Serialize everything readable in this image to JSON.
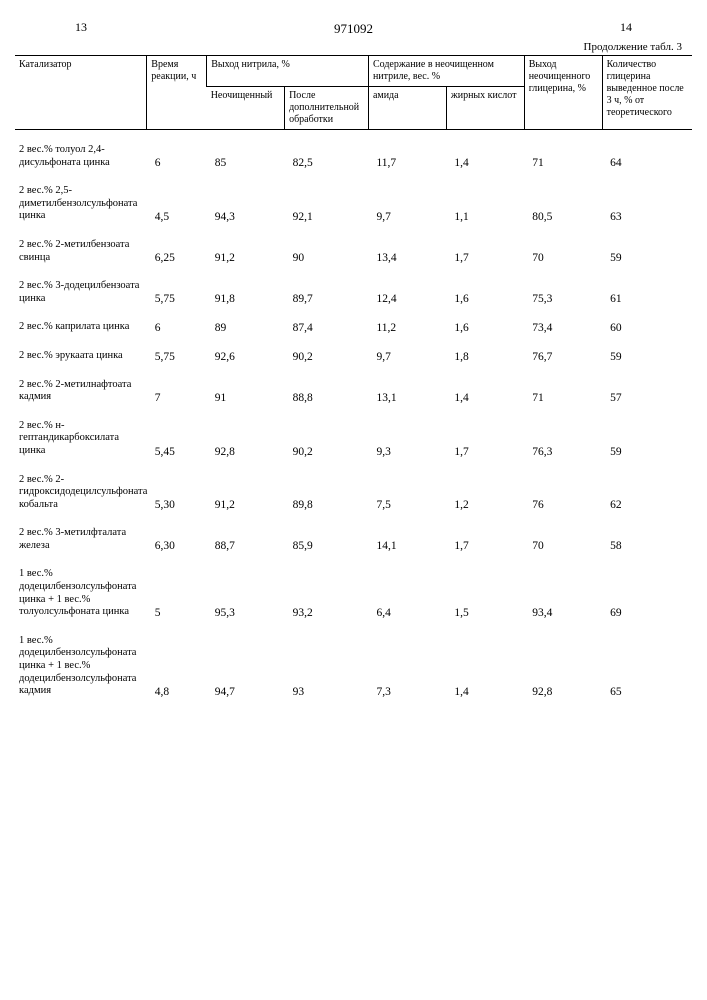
{
  "page_left": "13",
  "doc_number": "971092",
  "page_right": "14",
  "continuation": "Продолжение табл. 3",
  "headers": {
    "catalyst": "Катализатор",
    "time": "Время реакции, ч",
    "nitrile_yield": "Выход нитрила, %",
    "crude": "Неочищенный",
    "after": "После дополнительной обработки",
    "content": "Содержание в неочищенном нитриле, вес. %",
    "amide": "амида",
    "fatty": "жирных кислот",
    "glycerin_yield": "Выход неочищенного глицерина, %",
    "glycerin_amount": "Количество глицерина выведенное после 3 ч, % от теоретического"
  },
  "rows": [
    {
      "cat": "2 вес.% толуол 2,4-дисульфоната цинка",
      "time": "6",
      "crude": "85",
      "after": "82,5",
      "amide": "11,7",
      "fatty": "1,4",
      "gy": "71",
      "ga": "64"
    },
    {
      "cat": "2 вес.% 2,5-диметилбензолсульфоната цинка",
      "time": "4,5",
      "crude": "94,3",
      "after": "92,1",
      "amide": "9,7",
      "fatty": "1,1",
      "gy": "80,5",
      "ga": "63"
    },
    {
      "cat": "2 вес.% 2-метилбензоата свинца",
      "time": "6,25",
      "crude": "91,2",
      "after": "90",
      "amide": "13,4",
      "fatty": "1,7",
      "gy": "70",
      "ga": "59"
    },
    {
      "cat": "2 вес.% 3-додецилбензоата цинка",
      "time": "5,75",
      "crude": "91,8",
      "after": "89,7",
      "amide": "12,4",
      "fatty": "1,6",
      "gy": "75,3",
      "ga": "61"
    },
    {
      "cat": "2 вес.% каприлата цинка",
      "time": "6",
      "crude": "89",
      "after": "87,4",
      "amide": "11,2",
      "fatty": "1,6",
      "gy": "73,4",
      "ga": "60"
    },
    {
      "cat": "2 вес.% эрукаата цинка",
      "time": "5,75",
      "crude": "92,6",
      "after": "90,2",
      "amide": "9,7",
      "fatty": "1,8",
      "gy": "76,7",
      "ga": "59"
    },
    {
      "cat": "2 вес.% 2-метилнафтоата кадмия",
      "time": "7",
      "crude": "91",
      "after": "88,8",
      "amide": "13,1",
      "fatty": "1,4",
      "gy": "71",
      "ga": "57"
    },
    {
      "cat": "2 вес.% н-гептандикарбоксилата цинка",
      "time": "5,45",
      "crude": "92,8",
      "after": "90,2",
      "amide": "9,3",
      "fatty": "1,7",
      "gy": "76,3",
      "ga": "59"
    },
    {
      "cat": "2 вес.% 2-гидроксидодецилсульфоната кобальта",
      "time": "5,30",
      "crude": "91,2",
      "after": "89,8",
      "amide": "7,5",
      "fatty": "1,2",
      "gy": "76",
      "ga": "62"
    },
    {
      "cat": "2 вес.% 3-метилфталата железа",
      "time": "6,30",
      "crude": "88,7",
      "after": "85,9",
      "amide": "14,1",
      "fatty": "1,7",
      "gy": "70",
      "ga": "58"
    },
    {
      "cat": "1 вес.% додецилбензолсульфоната цинка + 1 вес.% толуолсульфоната цинка",
      "time": "5",
      "crude": "95,3",
      "after": "93,2",
      "amide": "6,4",
      "fatty": "1,5",
      "gy": "93,4",
      "ga": "69"
    },
    {
      "cat": "1 вес.% додецилбензолсульфоната цинка + 1 вес.% додецилбензолсульфоната кадмия",
      "time": "4,8",
      "crude": "94,7",
      "after": "93",
      "amide": "7,3",
      "fatty": "1,4",
      "gy": "92,8",
      "ga": "65"
    }
  ]
}
